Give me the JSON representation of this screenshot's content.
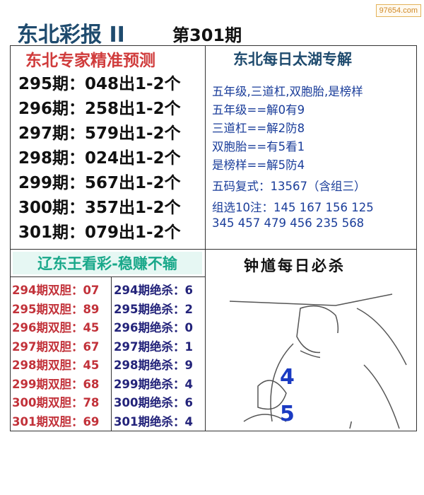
{
  "watermark": "97654.com",
  "header": {
    "title": "东北彩报 II",
    "issue": "第301期"
  },
  "left_top": {
    "title": "东北专家精准预测",
    "rows": [
      "295期：048出1-2个",
      "296期：258出1-2个",
      "297期：579出1-2个",
      "298期：024出1-2个",
      "299期：567出1-2个",
      "300期：357出1-2个",
      "301期：079出1-2个"
    ]
  },
  "right_top": {
    "title": "东北每日太湖专解",
    "lines": [
      "五年级,三道杠,双胞胎,是榜样",
      "五年级==解0有9",
      "三道杠==解2防8",
      "双胞胎==有5看1",
      "是榜样==解5防4",
      "五码复式：13567（含组三）",
      "组选10注：145 167 156 125",
      "345 457 479 456 235 568"
    ]
  },
  "left_bottom": {
    "title": "辽东王看彩-稳赚不输",
    "dan": [
      "294期双胆：07",
      "295期双胆：89",
      "296期双胆：45",
      "297期双胆：67",
      "298期双胆：45",
      "299期双胆：68",
      "300期双胆：78",
      "301期双胆：69"
    ],
    "sha": [
      "294期绝杀：6",
      "295期绝杀：2",
      "296期绝杀：0",
      "297期绝杀：1",
      "298期绝杀：9",
      "299期绝杀：4",
      "300期绝杀：6",
      "301期绝杀：4"
    ]
  },
  "right_bottom": {
    "title": "钟馗每日必杀",
    "numbers": [
      "4",
      "5"
    ]
  }
}
